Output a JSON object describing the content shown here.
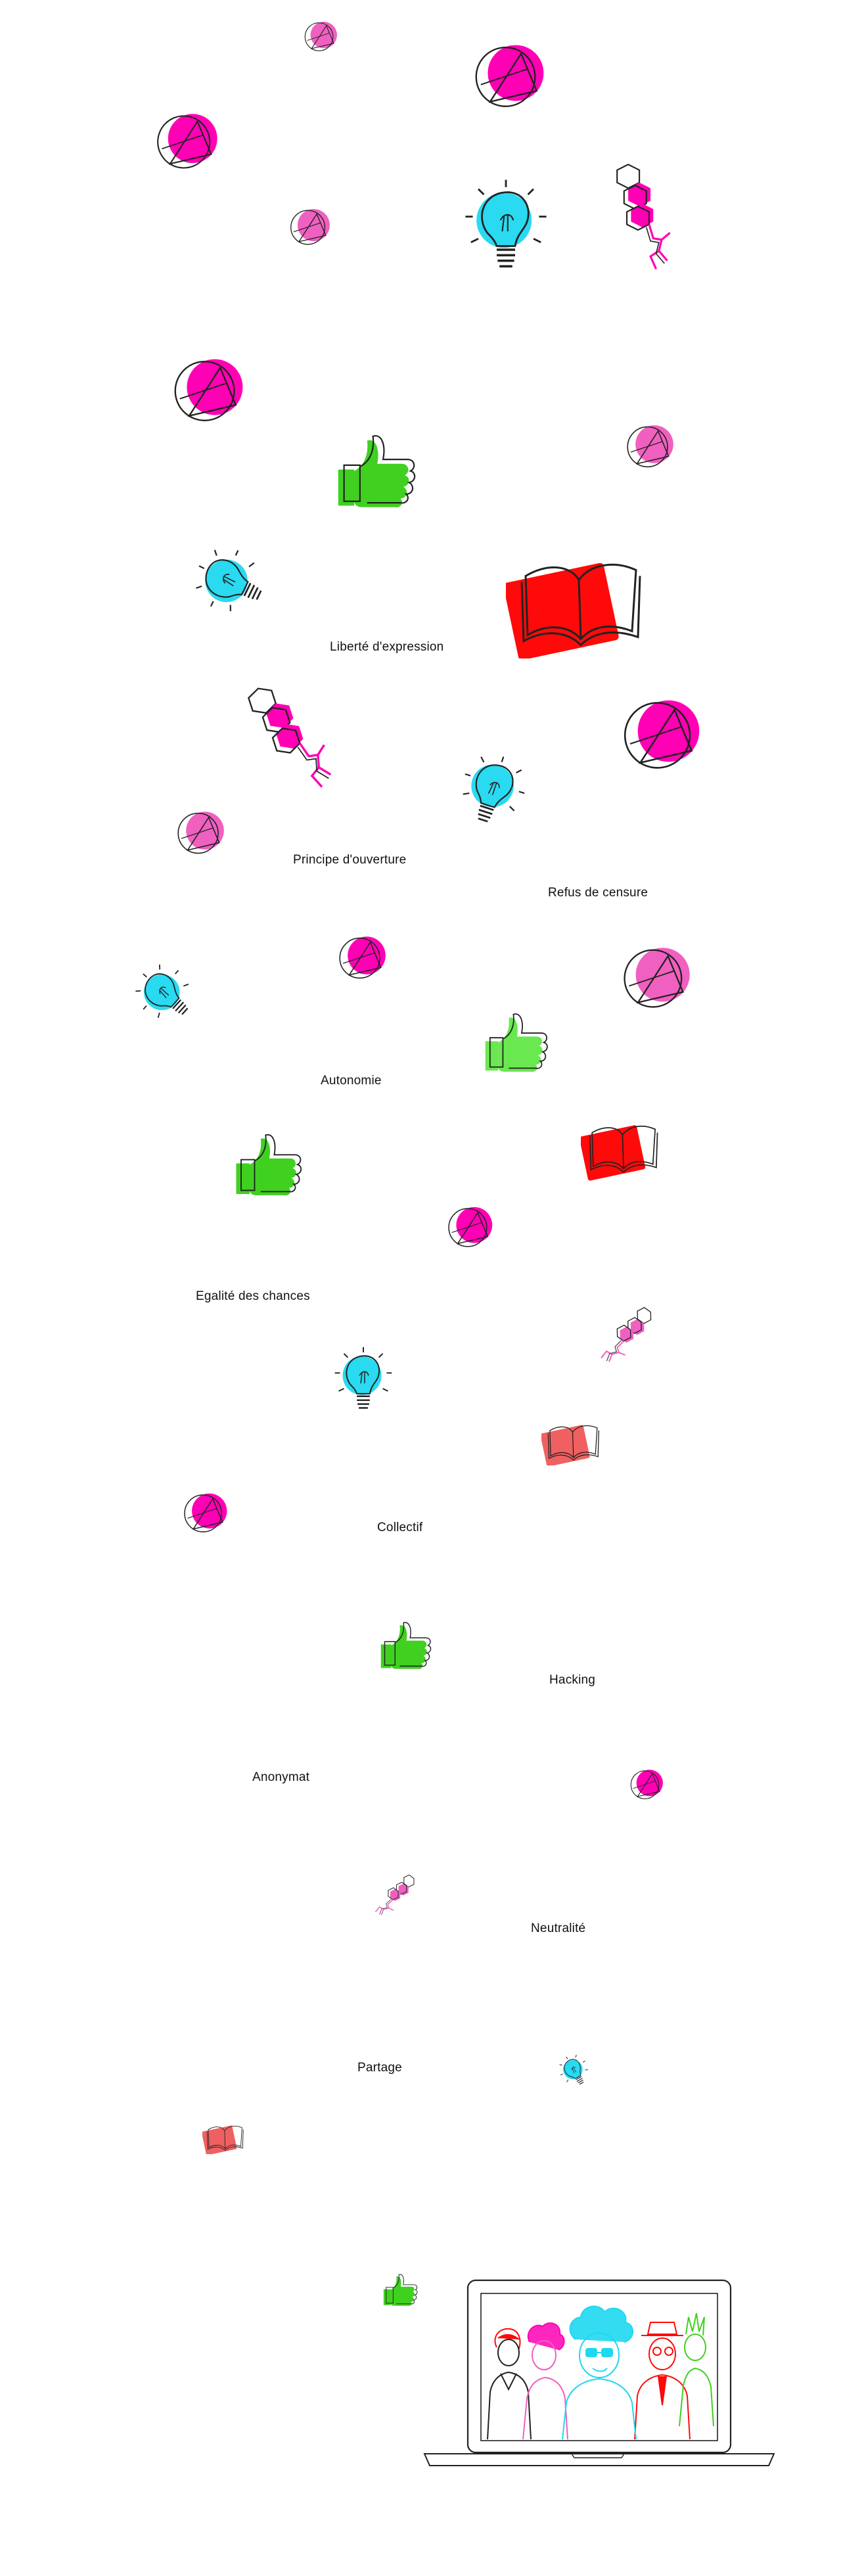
{
  "labels": {
    "liberte": "Liberté d'expression",
    "ouverture": "Principe d'ouverture",
    "censure": "Refus de censure",
    "autonomie": "Autonomie",
    "egalite": "Egalité des chances",
    "collectif": "Collectif",
    "hacking": "Hacking",
    "anonymat": "Anonymat",
    "neutralite": "Neutralité",
    "partage": "Partage"
  },
  "colors": {
    "magenta": "#ff00b4",
    "pink": "#f060c0",
    "cyan": "#1ed8f0",
    "green": "#40d020",
    "lightgreen": "#6ae850",
    "red": "#ff0a0a",
    "salmon": "#f06060",
    "stroke": "#222222"
  },
  "icons": {
    "geo": "geometric-circle-triangle-icon",
    "bulb": "lightbulb-icon",
    "thumb": "thumbs-up-icon",
    "book": "open-book-icon",
    "molecule": "molecule-icon",
    "laptop": "laptop-with-people-icon"
  }
}
